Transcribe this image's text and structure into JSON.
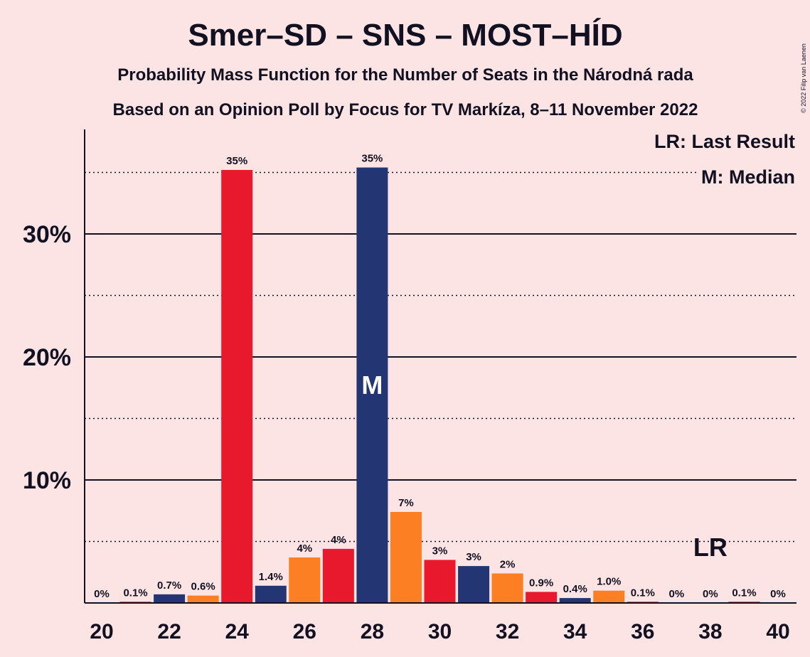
{
  "title": "Smer–SD – SNS – MOST–HÍD",
  "subtitle1": "Probability Mass Function for the Number of Seats in the Národná rada",
  "subtitle2": "Based on an Opinion Poll by Focus for TV Markíza, 8–11 November 2022",
  "copyright": "© 2022 Filip van Laenen",
  "legend": {
    "last_result": "LR: Last Result",
    "median": "M: Median"
  },
  "colors": {
    "red": "#e8192c",
    "navy": "#233673",
    "orange": "#fd7f23",
    "background": "#fde4e4"
  },
  "chart_data": {
    "type": "bar",
    "x": [
      20,
      21,
      22,
      23,
      24,
      25,
      26,
      27,
      28,
      29,
      30,
      31,
      32,
      33,
      34,
      35,
      36,
      37,
      38,
      39,
      40
    ],
    "values": [
      0,
      0.1,
      0.7,
      0.6,
      35.2,
      1.4,
      3.7,
      4.4,
      35.4,
      7.4,
      3.5,
      3.0,
      2.4,
      0.9,
      0.4,
      1.0,
      0.1,
      0,
      0,
      0.1,
      0
    ],
    "labels": [
      "0%",
      "0.1%",
      "0.7%",
      "0.6%",
      "35%",
      "1.4%",
      "4%",
      "4%",
      "35%",
      "7%",
      "3%",
      "3%",
      "2%",
      "0.9%",
      "0.4%",
      "1.0%",
      "0.1%",
      "0%",
      "0%",
      "0.1%",
      "0%"
    ],
    "bar_colors": [
      "red",
      "red",
      "navy",
      "orange",
      "red",
      "navy",
      "orange",
      "red",
      "navy",
      "orange",
      "red",
      "navy",
      "orange",
      "red",
      "navy",
      "orange",
      "red",
      "navy",
      "orange",
      "red",
      "navy"
    ],
    "xticks": [
      20,
      22,
      24,
      26,
      28,
      30,
      32,
      34,
      36,
      38,
      40
    ],
    "yticks": [
      {
        "value": 10,
        "label": "10%"
      },
      {
        "value": 20,
        "label": "20%"
      },
      {
        "value": 30,
        "label": "30%"
      }
    ],
    "minor_gridlines": [
      5,
      15,
      25,
      35
    ],
    "ylim": [
      0,
      38.5
    ],
    "median": {
      "x": 28,
      "label": "M"
    },
    "last_result": {
      "x": 38,
      "label": "LR"
    }
  }
}
